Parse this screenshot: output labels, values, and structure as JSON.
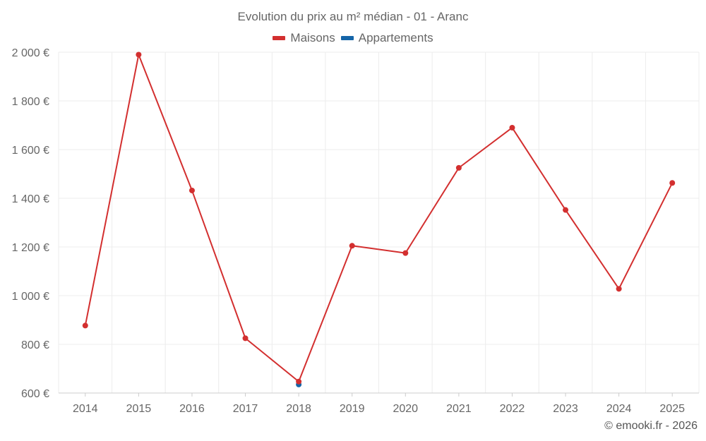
{
  "chart_data": {
    "type": "line",
    "title": "Evolution du prix au m² médian - 01 - Aranc",
    "categories": [
      "2014",
      "2015",
      "2016",
      "2017",
      "2018",
      "2019",
      "2020",
      "2021",
      "2022",
      "2023",
      "2024",
      "2025"
    ],
    "series": [
      {
        "name": "Maisons",
        "color": "#d32f2f",
        "values": [
          877,
          1990,
          1432,
          825,
          647,
          1205,
          1175,
          1525,
          1690,
          1352,
          1028,
          1463
        ]
      },
      {
        "name": "Appartements",
        "color": "#1565a8",
        "values": [
          null,
          null,
          null,
          null,
          635,
          null,
          null,
          null,
          null,
          null,
          null,
          null
        ]
      }
    ],
    "y_ticks": [
      {
        "value": 600,
        "label": "600 €"
      },
      {
        "value": 800,
        "label": "800 €"
      },
      {
        "value": 1000,
        "label": "1 000 €"
      },
      {
        "value": 1200,
        "label": "1 200 €"
      },
      {
        "value": 1400,
        "label": "1 400 €"
      },
      {
        "value": 1600,
        "label": "1 600 €"
      },
      {
        "value": 1800,
        "label": "1 800 €"
      },
      {
        "value": 2000,
        "label": "2 000 €"
      }
    ],
    "ylim": [
      600,
      2000
    ],
    "xlabel": "",
    "ylabel": "",
    "grid": true,
    "legend_position": "top-center"
  },
  "credit": "© emooki.fr - 2026"
}
